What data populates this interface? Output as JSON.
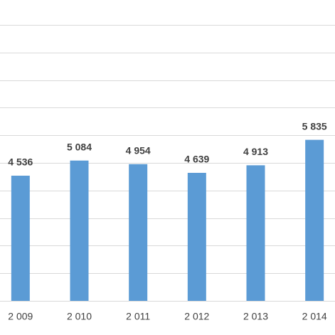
{
  "chart_data": {
    "type": "bar",
    "categories": [
      "2 009",
      "2 010",
      "2 011",
      "2 012",
      "2 013",
      "2 014"
    ],
    "values": [
      4536,
      5084,
      4954,
      4639,
      4913,
      5835
    ],
    "value_labels": [
      "4 536",
      "5 084",
      "4 954",
      "4 639",
      "4 913",
      "5 835"
    ],
    "color": "#5b9bd5",
    "ylim": [
      0,
      10000
    ],
    "yticks": [
      0,
      1000,
      2000,
      3000,
      4000,
      5000,
      6000,
      7000,
      8000,
      9000,
      10000
    ],
    "grid": true
  }
}
